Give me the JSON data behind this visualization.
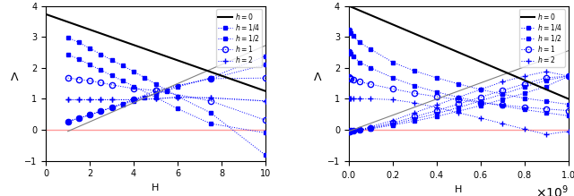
{
  "left": {
    "xlim": [
      0,
      10
    ],
    "ylim": [
      -1,
      4
    ],
    "xlabel": "H",
    "ylabel": "Λ",
    "black_line": {
      "x": [
        0,
        10
      ],
      "y": [
        3.73,
        1.25
      ]
    },
    "gray_line": {
      "x": [
        1,
        10
      ],
      "y": [
        -0.05,
        2.72
      ]
    },
    "red_line_y": 0,
    "series": [
      {
        "label": "h = 1/4",
        "marker": "s",
        "fillstyle": "full",
        "x_dec": [
          1,
          1.5,
          2,
          2.5,
          3,
          3.5,
          4,
          4.5,
          5,
          5.5,
          6,
          7.5,
          10
        ],
        "y_dec": [
          2.98,
          2.82,
          2.63,
          2.44,
          2.25,
          2.07,
          1.88,
          1.68,
          1.48,
          1.28,
          1.08,
          0.55,
          -0.82
        ],
        "x_inc": [
          1,
          1.5,
          2,
          2.5,
          3,
          3.5,
          4,
          4.5,
          5,
          5.5,
          6,
          7.5,
          10
        ],
        "y_inc": [
          0.27,
          0.37,
          0.48,
          0.6,
          0.72,
          0.82,
          0.93,
          1.05,
          1.15,
          1.25,
          1.38,
          1.68,
          2.38
        ]
      },
      {
        "label": "h = 1/2",
        "marker": "s",
        "fillstyle": "full",
        "x_dec": [
          1,
          1.5,
          2,
          2.5,
          3,
          3.5,
          4,
          5,
          6,
          7.5,
          10
        ],
        "y_dec": [
          2.43,
          2.28,
          2.1,
          1.93,
          1.75,
          1.58,
          1.4,
          1.05,
          0.68,
          0.2,
          -0.1
        ],
        "x_inc": [
          1,
          1.5,
          2,
          2.5,
          3,
          3.5,
          4,
          5,
          6,
          7.5,
          10
        ],
        "y_inc": [
          0.27,
          0.37,
          0.48,
          0.6,
          0.72,
          0.85,
          0.97,
          1.18,
          1.42,
          1.65,
          2.1
        ]
      },
      {
        "label": "h = 1",
        "marker": "o",
        "fillstyle": "none",
        "x_dec": [
          1,
          1.5,
          2,
          2.5,
          3,
          4,
          5,
          7.5,
          10
        ],
        "y_dec": [
          1.67,
          1.63,
          1.58,
          1.52,
          1.45,
          1.33,
          1.27,
          0.93,
          0.31
        ],
        "x_inc": [
          1,
          1.5,
          2,
          2.5,
          3,
          4,
          5,
          7.5,
          10
        ],
        "y_inc": [
          0.27,
          0.37,
          0.48,
          0.6,
          0.72,
          0.97,
          1.27,
          1.65,
          1.67
        ]
      },
      {
        "label": "h = 2",
        "marker": "+",
        "fillstyle": "full",
        "x_dec": [
          1,
          1.5,
          2,
          2.5,
          3,
          4,
          5,
          6,
          7.5,
          10
        ],
        "y_dec": [
          0.97,
          0.97,
          0.97,
          0.97,
          0.97,
          0.97,
          1.0,
          1.05,
          1.03,
          0.93
        ],
        "x_inc": [
          1,
          1.5,
          2,
          2.5,
          3,
          4,
          5,
          6,
          7.5,
          10
        ],
        "y_inc": [
          0.97,
          0.97,
          0.97,
          0.97,
          0.97,
          0.97,
          1.0,
          1.05,
          1.03,
          0.93
        ]
      }
    ]
  },
  "right": {
    "xlim": [
      0,
      1000000000.0
    ],
    "ylim": [
      -1,
      4
    ],
    "xlabel": "H",
    "ylabel": "Λ",
    "black_line": {
      "x": [
        0,
        1000000000.0
      ],
      "y": [
        4.0,
        1.0
      ]
    },
    "gray_line": {
      "x": [
        0,
        1000000000.0
      ],
      "y": [
        -0.05,
        2.55
      ]
    },
    "red_line_y": 0,
    "series": [
      {
        "label": "h = 1/4",
        "marker": "s",
        "fillstyle": "full",
        "x_dec": [
          2000000.0,
          5000000.0,
          10000000.0,
          20000000.0,
          50000000.0,
          100000000.0,
          200000000.0,
          300000000.0,
          400000000.0,
          500000000.0,
          600000000.0,
          700000000.0,
          800000000.0,
          900000000.0,
          1000000000.0
        ],
        "y_dec": [
          3.25,
          3.2,
          3.12,
          3.02,
          2.82,
          2.6,
          2.18,
          1.9,
          1.68,
          1.48,
          1.3,
          1.15,
          1.02,
          0.92,
          0.82
        ],
        "x_inc": [
          2000000.0,
          5000000.0,
          10000000.0,
          20000000.0,
          50000000.0,
          100000000.0,
          200000000.0,
          300000000.0,
          400000000.0,
          500000000.0,
          600000000.0,
          700000000.0,
          800000000.0,
          900000000.0,
          1000000000.0
        ],
        "y_inc": [
          -0.05,
          -0.05,
          -0.04,
          -0.03,
          -0.01,
          0.03,
          0.15,
          0.28,
          0.43,
          0.6,
          0.78,
          0.98,
          1.18,
          1.4,
          1.72
        ]
      },
      {
        "label": "h = 1/2",
        "marker": "s",
        "fillstyle": "full",
        "x_dec": [
          2000000.0,
          5000000.0,
          10000000.0,
          20000000.0,
          50000000.0,
          100000000.0,
          200000000.0,
          300000000.0,
          400000000.0,
          500000000.0,
          600000000.0,
          700000000.0,
          800000000.0,
          900000000.0,
          1000000000.0
        ],
        "y_dec": [
          2.53,
          2.5,
          2.45,
          2.37,
          2.18,
          2.0,
          1.68,
          1.42,
          1.22,
          1.05,
          0.9,
          0.77,
          0.65,
          0.55,
          0.45
        ],
        "x_inc": [
          2000000.0,
          5000000.0,
          10000000.0,
          20000000.0,
          50000000.0,
          100000000.0,
          200000000.0,
          300000000.0,
          400000000.0,
          500000000.0,
          600000000.0,
          700000000.0,
          800000000.0,
          900000000.0,
          1000000000.0
        ],
        "y_inc": [
          -0.05,
          -0.05,
          -0.04,
          -0.03,
          -0.01,
          0.05,
          0.18,
          0.35,
          0.52,
          0.72,
          0.93,
          1.15,
          1.38,
          1.6,
          1.73
        ]
      },
      {
        "label": "h = 1",
        "marker": "o",
        "fillstyle": "none",
        "x_dec": [
          2000000.0,
          5000000.0,
          10000000.0,
          20000000.0,
          50000000.0,
          100000000.0,
          200000000.0,
          300000000.0,
          400000000.0,
          500000000.0,
          600000000.0,
          700000000.0,
          800000000.0,
          900000000.0,
          1000000000.0
        ],
        "y_dec": [
          1.7,
          1.68,
          1.65,
          1.62,
          1.55,
          1.47,
          1.32,
          1.18,
          1.07,
          0.97,
          0.88,
          0.8,
          0.73,
          0.67,
          0.62
        ],
        "x_inc": [
          2000000.0,
          5000000.0,
          10000000.0,
          20000000.0,
          50000000.0,
          100000000.0,
          200000000.0,
          300000000.0,
          400000000.0,
          500000000.0,
          600000000.0,
          700000000.0,
          800000000.0,
          900000000.0,
          1000000000.0
        ],
        "y_inc": [
          -0.05,
          -0.05,
          -0.04,
          -0.03,
          -0.01,
          0.07,
          0.22,
          0.42,
          0.62,
          0.83,
          1.05,
          1.27,
          1.48,
          1.68,
          1.73
        ]
      },
      {
        "label": "h = 2",
        "marker": "+",
        "fillstyle": "full",
        "x_dec": [
          2000000.0,
          5000000.0,
          10000000.0,
          20000000.0,
          50000000.0,
          100000000.0,
          200000000.0,
          300000000.0,
          400000000.0,
          500000000.0,
          600000000.0,
          700000000.0,
          800000000.0,
          900000000.0,
          1000000000.0
        ],
        "y_dec": [
          1.0,
          1.0,
          1.0,
          1.0,
          1.0,
          1.0,
          0.97,
          0.87,
          0.72,
          0.55,
          0.38,
          0.2,
          0.02,
          -0.15,
          -0.05
        ],
        "x_inc": [
          2000000.0,
          5000000.0,
          10000000.0,
          20000000.0,
          50000000.0,
          100000000.0,
          200000000.0,
          300000000.0,
          400000000.0,
          500000000.0,
          600000000.0,
          700000000.0,
          800000000.0,
          900000000.0,
          1000000000.0
        ],
        "y_inc": [
          -0.05,
          -0.05,
          -0.04,
          -0.03,
          -0.01,
          0.1,
          0.3,
          0.55,
          0.8,
          1.05,
          1.3,
          1.55,
          1.73,
          1.88,
          1.73
        ]
      }
    ]
  },
  "blue_color": "#0000FF",
  "black_color": "#000000",
  "gray_color": "#808080",
  "red_color": "#FF9999"
}
